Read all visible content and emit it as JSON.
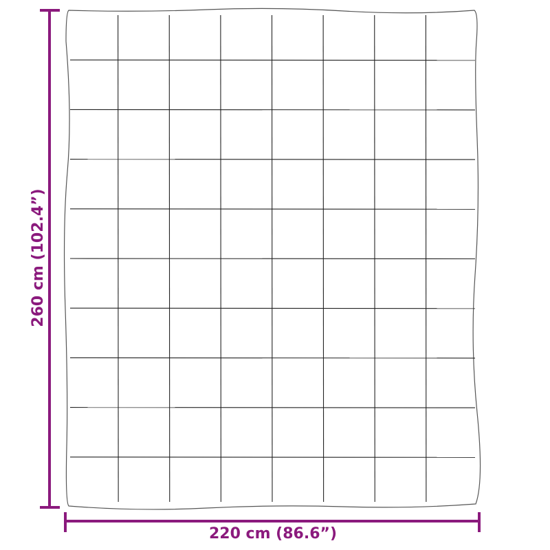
{
  "dimensions": {
    "height_label": "260 cm (102.4”)",
    "width_label": "220 cm (86.6”)"
  },
  "blanket": {
    "columns": 8,
    "rows": 10
  },
  "colors": {
    "dimension": "#8b1a7d",
    "outline": "#555555",
    "grid": "#222222"
  }
}
